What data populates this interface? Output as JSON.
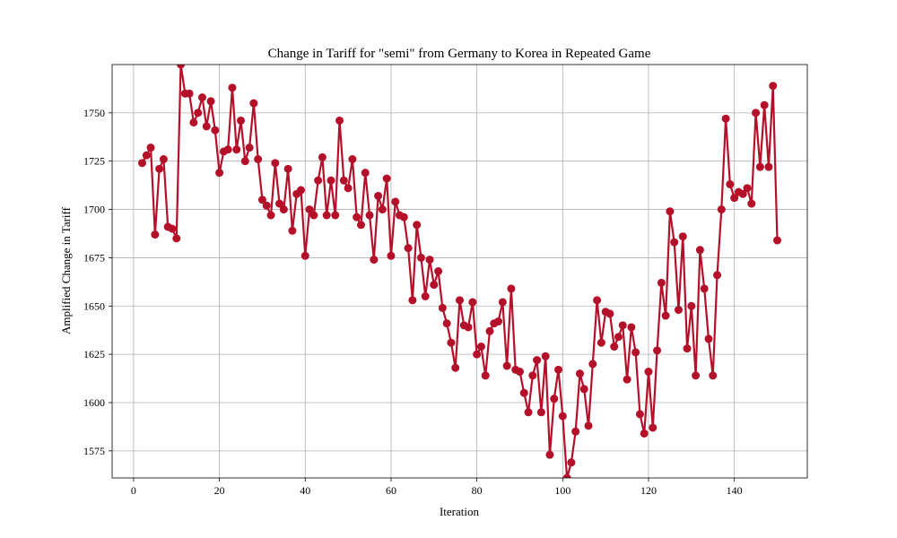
{
  "chart_data": {
    "type": "line",
    "title": "Change in Tariff for \"semi\" from Germany to Korea in Repeated Game",
    "xlabel": "Iteration",
    "ylabel": "Amplified Change in Tariff",
    "xlim": [
      -5,
      157
    ],
    "ylim": [
      1561,
      1775
    ],
    "xticks": [
      0,
      20,
      40,
      60,
      80,
      100,
      120,
      140
    ],
    "yticks": [
      1575,
      1600,
      1625,
      1650,
      1675,
      1700,
      1725,
      1750
    ],
    "grid": true,
    "color": "#b5102a",
    "marker": "circle",
    "x": [
      2,
      3,
      4,
      5,
      6,
      7,
      8,
      9,
      10,
      11,
      12,
      13,
      14,
      15,
      16,
      17,
      18,
      19,
      20,
      21,
      22,
      23,
      24,
      25,
      26,
      27,
      28,
      29,
      30,
      31,
      32,
      33,
      34,
      35,
      36,
      37,
      38,
      39,
      40,
      41,
      42,
      43,
      44,
      45,
      46,
      47,
      48,
      49,
      50,
      51,
      52,
      53,
      54,
      55,
      56,
      57,
      58,
      59,
      60,
      61,
      62,
      63,
      64,
      65,
      66,
      67,
      68,
      69,
      70,
      71,
      72,
      73,
      74,
      75,
      76,
      77,
      78,
      79,
      80,
      81,
      82,
      83,
      84,
      85,
      86,
      87,
      88,
      89,
      90,
      91,
      92,
      93,
      94,
      95,
      96,
      97,
      98,
      99,
      100,
      101,
      102,
      103,
      104,
      105,
      106,
      107,
      108,
      109,
      110,
      111,
      112,
      113,
      114,
      115,
      116,
      117,
      118,
      119,
      120,
      121,
      122,
      123,
      124,
      125,
      126,
      127,
      128,
      129,
      130,
      131,
      132,
      133,
      134,
      135,
      136,
      137,
      138,
      139,
      140,
      141,
      142,
      143,
      144,
      145,
      146,
      147,
      148,
      149,
      150
    ],
    "y": [
      1724,
      1728,
      1732,
      1687,
      1721,
      1726,
      1691,
      1690,
      1685,
      1775,
      1760,
      1760,
      1745,
      1750,
      1758,
      1743,
      1756,
      1741,
      1719,
      1730,
      1731,
      1763,
      1731,
      1746,
      1725,
      1732,
      1755,
      1726,
      1705,
      1702,
      1697,
      1724,
      1703,
      1700,
      1721,
      1689,
      1708,
      1710,
      1676,
      1700,
      1697,
      1715,
      1727,
      1697,
      1715,
      1697,
      1746,
      1715,
      1711,
      1726,
      1696,
      1692,
      1719,
      1697,
      1674,
      1707,
      1700,
      1716,
      1676,
      1704,
      1697,
      1696,
      1680,
      1653,
      1692,
      1675,
      1655,
      1674,
      1661,
      1668,
      1649,
      1641,
      1631,
      1618,
      1653,
      1640,
      1639,
      1652,
      1625,
      1629,
      1614,
      1637,
      1641,
      1642,
      1652,
      1619,
      1659,
      1617,
      1616,
      1605,
      1595,
      1614,
      1622,
      1595,
      1624,
      1573,
      1602,
      1617,
      1593,
      1561,
      1569,
      1585,
      1615,
      1607,
      1588,
      1620,
      1653,
      1631,
      1647,
      1646,
      1629,
      1634,
      1640,
      1612,
      1639,
      1626,
      1594,
      1584,
      1616,
      1587,
      1627,
      1662,
      1645,
      1699,
      1683,
      1648,
      1686,
      1628,
      1650,
      1614,
      1679,
      1659,
      1633,
      1614,
      1666,
      1700,
      1747,
      1713,
      1706,
      1709,
      1708,
      1711,
      1703,
      1750,
      1722,
      1754,
      1722,
      1764,
      1684
    ]
  }
}
